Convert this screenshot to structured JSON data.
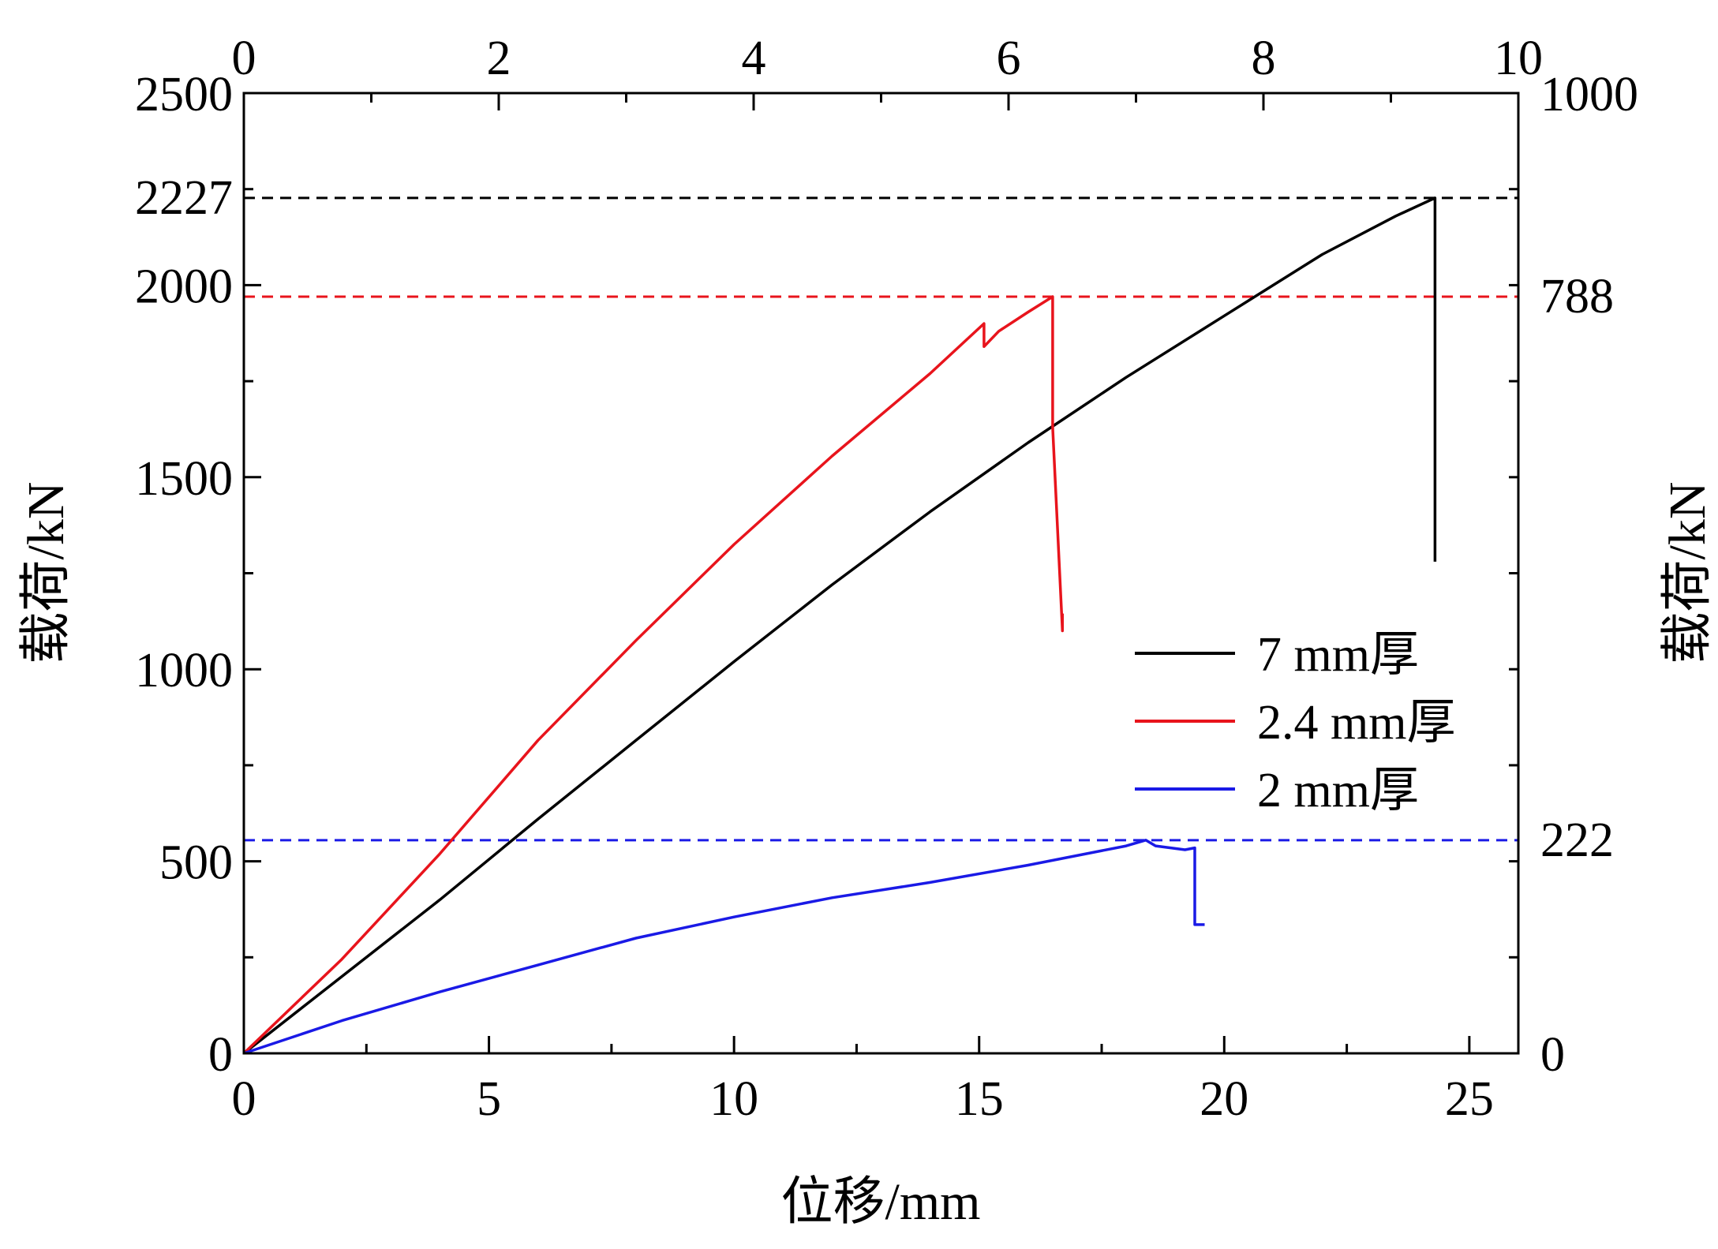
{
  "chart_data": {
    "type": "line",
    "xlabel": "位移/mm",
    "ylabel": "载荷/kN",
    "ylabel_right": "载荷/kN",
    "xlim": [
      0,
      26
    ],
    "ylim": [
      0,
      2500
    ],
    "x_ticks": [
      0,
      5,
      10,
      15,
      20,
      25
    ],
    "y_ticks": [
      0,
      500,
      1000,
      1500,
      2000,
      2500
    ],
    "x2_label": "",
    "x2_lim": [
      0,
      10
    ],
    "x2_ticks": [
      0,
      2,
      4,
      6,
      8,
      10
    ],
    "y2_lim": [
      0,
      1000
    ],
    "y2_ticks": [
      0,
      1000
    ],
    "legend_position": "center-right",
    "reference_lines": [
      {
        "axis": "left",
        "y": 2227,
        "label": "2227",
        "color": "#000000"
      },
      {
        "axis": "left",
        "y": 1970,
        "label": "788",
        "color": "#e8141c"
      },
      {
        "axis": "left",
        "y": 555,
        "label": "222",
        "color": "#1a1ae6"
      }
    ],
    "series": [
      {
        "name": "7 mm厚",
        "color": "#000000",
        "x": [
          0,
          2,
          4,
          6,
          8,
          10,
          12,
          14,
          16,
          18,
          20,
          22,
          23.5,
          24.3,
          24.3
        ],
        "y": [
          0,
          200,
          400,
          610,
          815,
          1020,
          1220,
          1410,
          1590,
          1760,
          1920,
          2080,
          2180,
          2227,
          1280
        ]
      },
      {
        "name": "2.4 mm厚",
        "color": "#e8141c",
        "x": [
          0,
          2,
          4,
          6,
          8,
          10,
          12,
          14,
          15.1,
          15.1,
          15.4,
          16.0,
          16.5,
          16.5,
          16.7,
          16.7
        ],
        "y": [
          0,
          245,
          520,
          815,
          1075,
          1325,
          1555,
          1770,
          1900,
          1840,
          1880,
          1930,
          1970,
          1630,
          1100,
          1145
        ]
      },
      {
        "name": "2 mm厚",
        "color": "#1a1ae6",
        "x": [
          0,
          2,
          4,
          6,
          8,
          10,
          12,
          14,
          16,
          18,
          18.4,
          18.6,
          19.2,
          19.4,
          19.4,
          19.6
        ],
        "y": [
          0,
          85,
          160,
          230,
          300,
          355,
          405,
          445,
          490,
          540,
          555,
          540,
          530,
          535,
          335,
          335
        ]
      }
    ]
  }
}
